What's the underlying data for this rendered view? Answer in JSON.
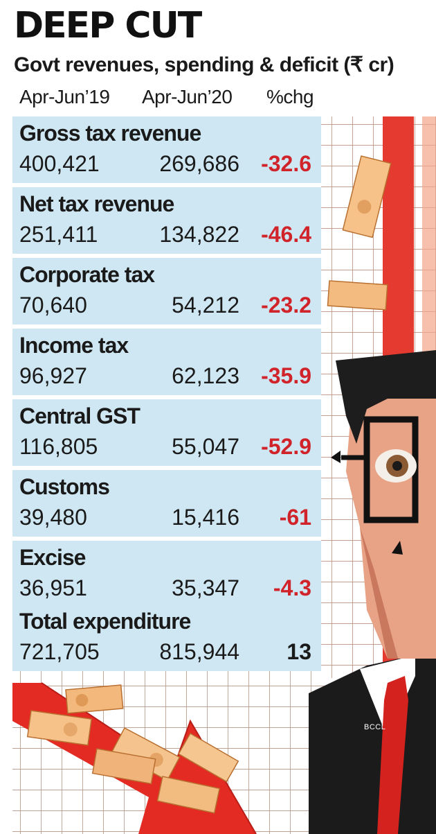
{
  "title": "DEEP CUT",
  "subtitle": "Govt revenues, spending & deficit (₹ cr)",
  "columns": [
    "Apr-Jun’19",
    "Apr-Jun’20",
    "%chg"
  ],
  "credit": "BCCL",
  "colors": {
    "row_bg": "#cfe7f2",
    "negative": "#d1232a",
    "grid_red": "#e53a2f",
    "arrow_red": "#e32b23",
    "suit": "#1b1b1b",
    "skin": "#e8a285"
  },
  "chart_data": {
    "type": "table",
    "title": "DEEP CUT",
    "subtitle": "Govt revenues, spending & deficit (₹ cr)",
    "columns": [
      "Apr-Jun’19",
      "Apr-Jun’20",
      "%chg"
    ],
    "rows": [
      {
        "label": "Gross tax revenue",
        "apr_jun_19": "400,421",
        "apr_jun_20": "269,686",
        "pct_chg": "-32.6"
      },
      {
        "label": "Net tax revenue",
        "apr_jun_19": "251,411",
        "apr_jun_20": "134,822",
        "pct_chg": "-46.4"
      },
      {
        "label": "Corporate tax",
        "apr_jun_19": "70,640",
        "apr_jun_20": "54,212",
        "pct_chg": "-23.2"
      },
      {
        "label": "Income tax",
        "apr_jun_19": "96,927",
        "apr_jun_20": "62,123",
        "pct_chg": "-35.9"
      },
      {
        "label": "Central GST",
        "apr_jun_19": "116,805",
        "apr_jun_20": "55,047",
        "pct_chg": "-52.9"
      },
      {
        "label": "Customs",
        "apr_jun_19": "39,480",
        "apr_jun_20": "15,416",
        "pct_chg": "-61"
      },
      {
        "label": "Excise",
        "apr_jun_19": "36,951",
        "apr_jun_20": "35,347",
        "pct_chg": "-4.3"
      },
      {
        "label": "Total expenditure",
        "apr_jun_19": "721,705",
        "apr_jun_20": "815,944",
        "pct_chg": "13"
      }
    ]
  }
}
